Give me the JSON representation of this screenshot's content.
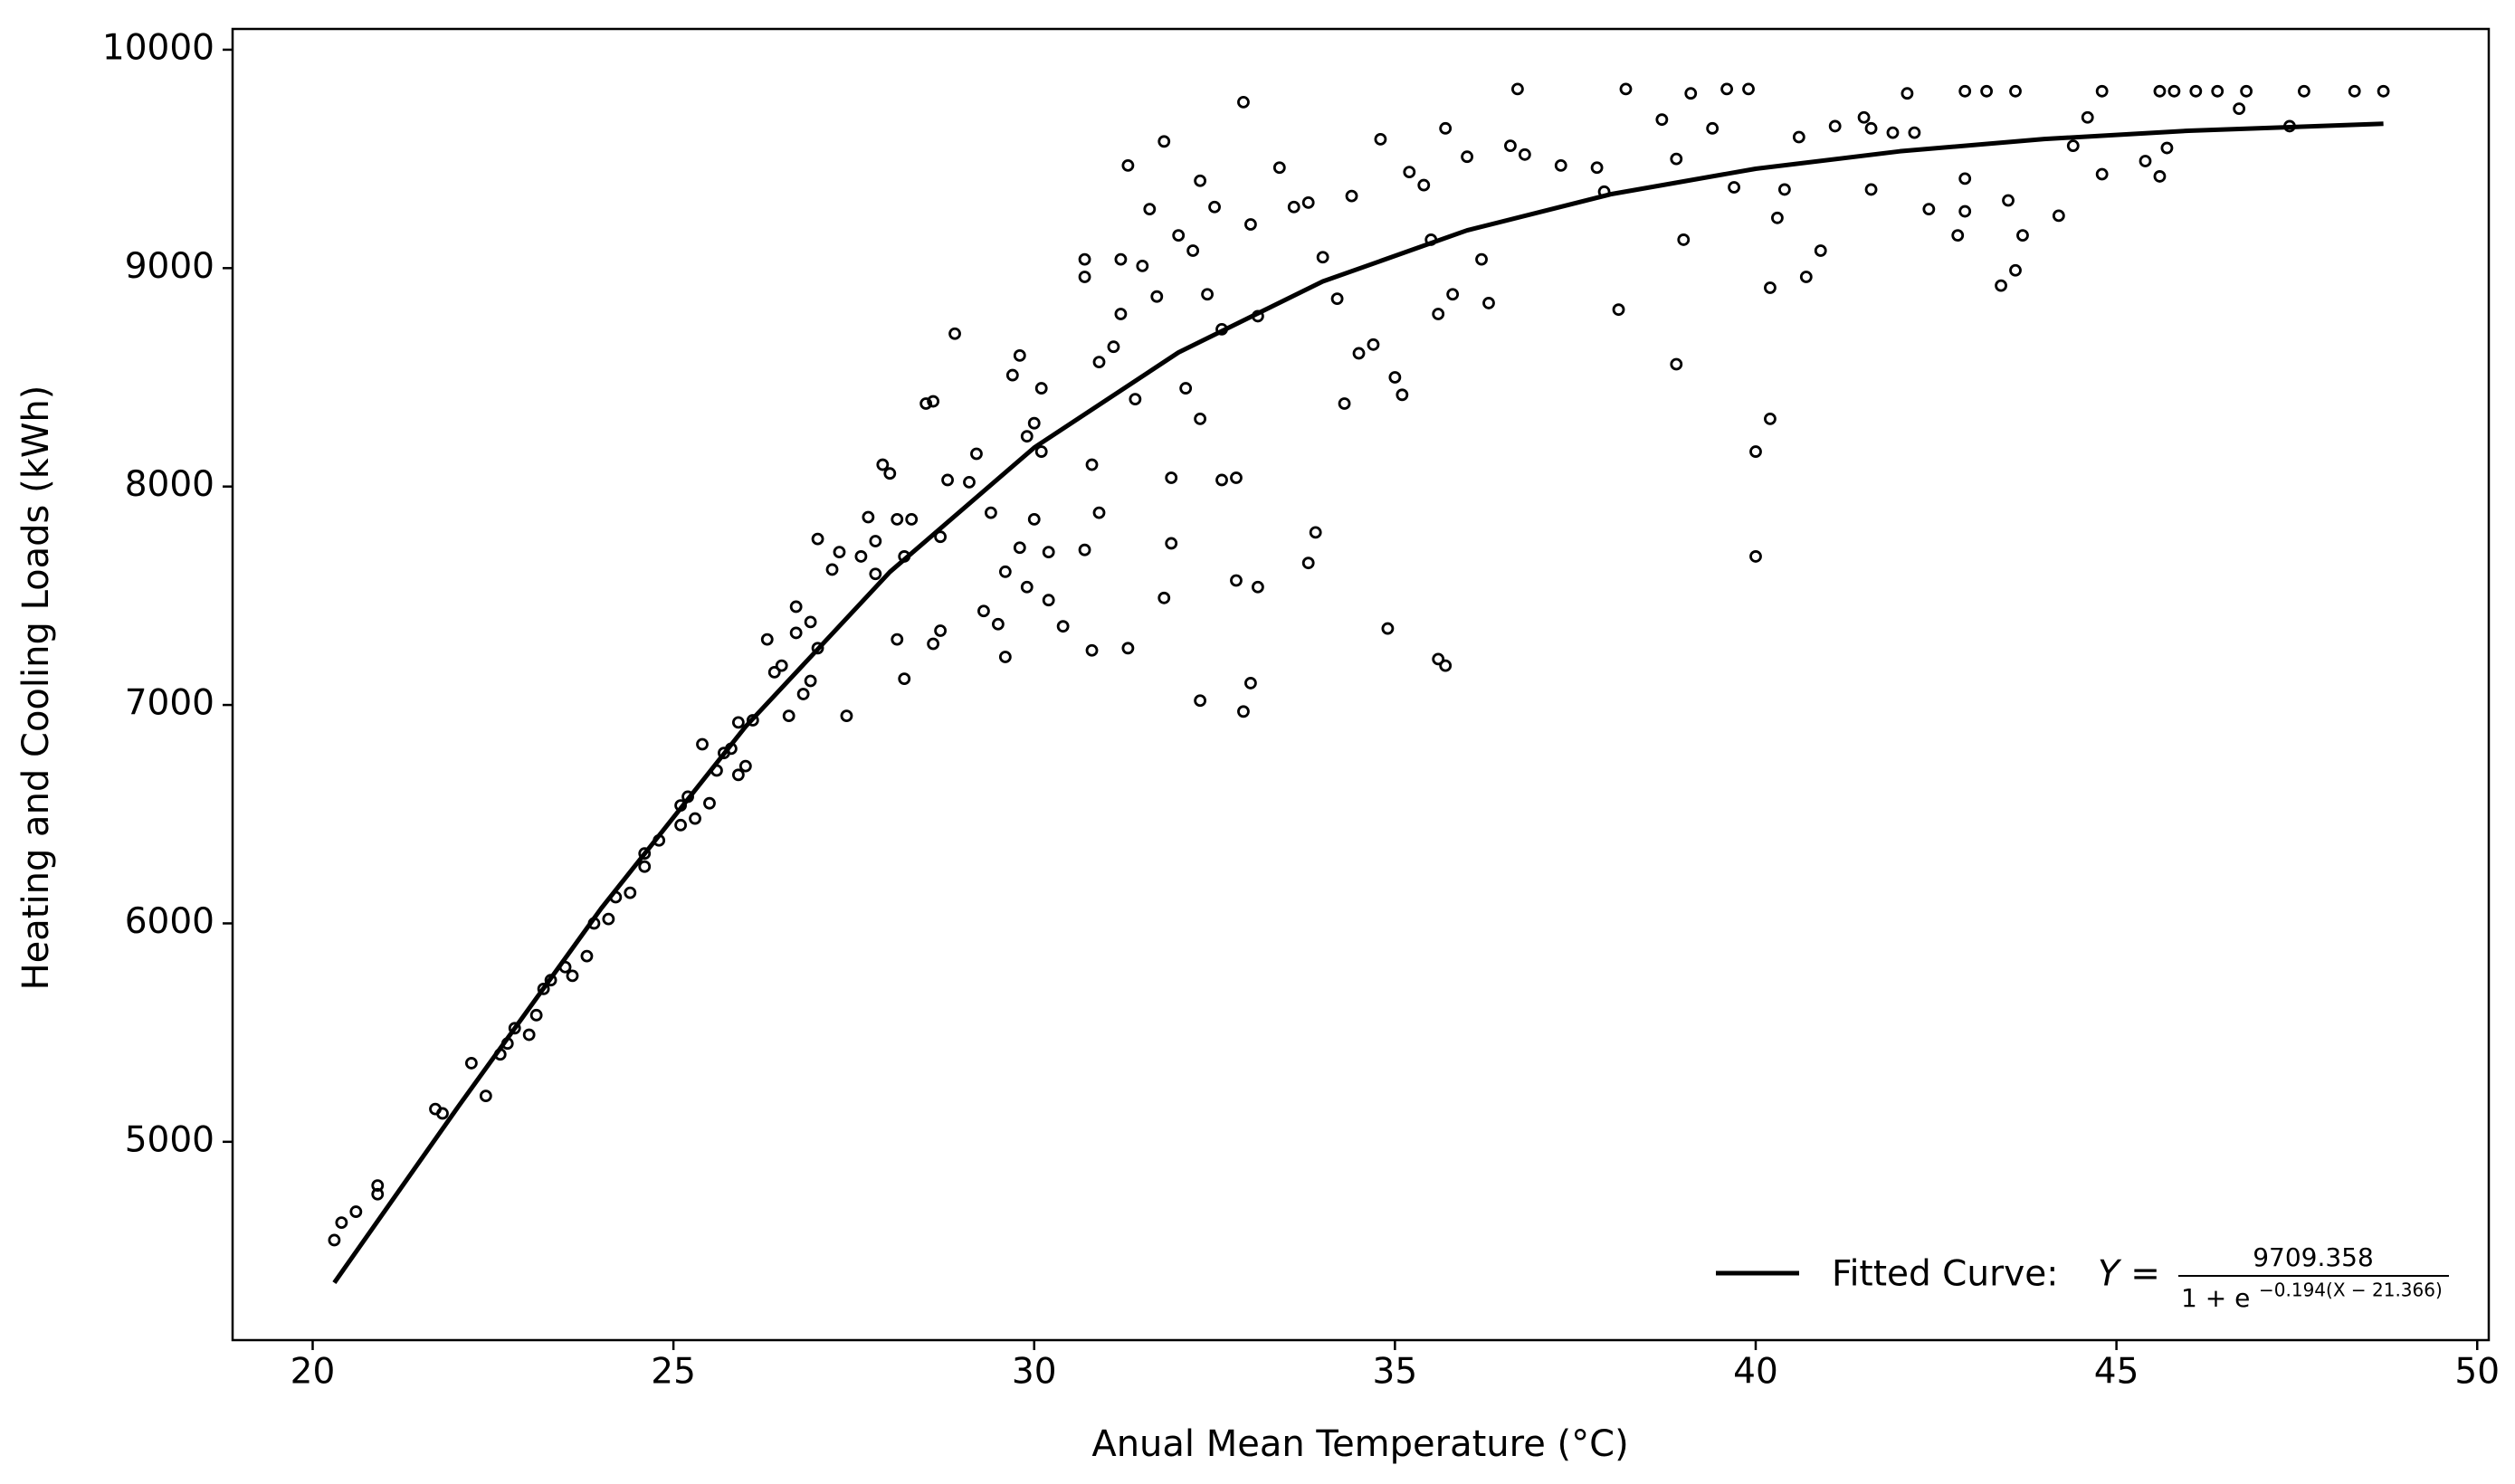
{
  "chart_data": {
    "type": "scatter",
    "xlabel": "Anual Mean Temperature (°C)",
    "ylabel": "Heating and Cooling Loads (kWh)",
    "xlim": [
      18.89,
      50.16
    ],
    "ylim": [
      4092,
      10095
    ],
    "xticks": [
      20,
      25,
      30,
      35,
      40,
      45,
      50
    ],
    "yticks": [
      5000,
      6000,
      7000,
      8000,
      9000,
      10000
    ],
    "legend_position": "lower right",
    "legend_formula": {
      "lhs": "Y =",
      "numerator": "9709.358",
      "denominator": "1 + e",
      "exponent": "−0.194(X − 21.366)"
    },
    "series": [
      {
        "type": "scatter",
        "color": "#000000",
        "marker": "open-circle",
        "x": [
          20.3,
          20.4,
          20.6,
          20.9,
          20.9,
          21.7,
          21.8,
          22.2,
          22.4,
          22.6,
          22.7,
          22.8,
          23.0,
          23.1,
          23.2,
          23.3,
          23.5,
          23.6,
          23.8,
          23.9,
          24.1,
          24.2,
          24.4,
          24.6,
          24.6,
          24.8,
          25.1,
          25.1,
          25.2,
          25.3,
          25.4,
          25.5,
          25.6,
          25.7,
          25.8,
          25.9,
          25.9,
          26.0,
          26.1,
          26.3,
          26.4,
          26.5,
          26.6,
          26.7,
          26.7,
          26.8,
          26.9,
          26.9,
          27.0,
          27.0,
          27.2,
          27.3,
          27.4,
          27.6,
          27.7,
          27.8,
          27.8,
          27.9,
          28.0,
          28.1,
          28.1,
          28.2,
          28.2,
          28.3,
          28.5,
          28.6,
          28.6,
          28.7,
          28.7,
          28.8,
          28.9,
          29.1,
          29.2,
          29.3,
          29.4,
          29.5,
          29.6,
          29.6,
          29.7,
          29.8,
          29.8,
          29.9,
          29.9,
          30.0,
          30.0,
          30.1,
          30.1,
          30.2,
          30.2,
          30.4,
          30.7,
          30.7,
          30.7,
          30.8,
          30.8,
          30.9,
          30.9,
          31.1,
          31.2,
          31.2,
          31.3,
          31.3,
          31.4,
          31.5,
          31.6,
          31.7,
          31.8,
          31.8,
          31.9,
          31.9,
          32.0,
          32.1,
          32.2,
          32.3,
          32.3,
          32.3,
          32.4,
          32.5,
          32.6,
          32.6,
          32.8,
          32.8,
          32.9,
          32.9,
          33.0,
          33.0,
          33.1,
          33.1,
          33.4,
          33.6,
          33.8,
          33.8,
          33.9,
          34.0,
          34.2,
          34.3,
          34.4,
          34.5,
          34.7,
          34.8,
          34.9,
          35.0,
          35.1,
          35.2,
          35.4,
          35.5,
          35.6,
          35.6,
          35.7,
          35.7,
          35.8,
          36.0,
          36.2,
          36.3,
          36.6,
          36.7,
          36.8,
          37.3,
          37.8,
          37.9,
          38.1,
          38.2,
          38.7,
          38.9,
          38.9,
          39.0,
          39.1,
          39.4,
          39.6,
          39.7,
          39.9,
          40.0,
          40.0,
          40.2,
          40.2,
          40.3,
          40.4,
          40.6,
          40.7,
          40.9,
          41.1,
          41.5,
          41.6,
          41.6,
          41.9,
          42.1,
          42.2,
          42.4,
          42.8,
          42.9,
          42.9,
          42.9,
          43.2,
          43.4,
          43.5,
          43.6,
          43.6,
          43.7,
          44.2,
          44.4,
          44.6,
          44.8,
          44.8,
          45.4,
          45.6,
          45.6,
          45.7,
          45.8,
          46.1,
          46.4,
          46.7,
          46.8,
          47.4,
          47.6,
          48.3,
          48.7
        ],
        "values": [
          4550,
          4630,
          4680,
          4760,
          4800,
          5150,
          5130,
          5360,
          5210,
          5400,
          5450,
          5520,
          5490,
          5580,
          5700,
          5740,
          5800,
          5760,
          5850,
          6000,
          6020,
          6120,
          6140,
          6260,
          6320,
          6380,
          6450,
          6540,
          6580,
          6480,
          6820,
          6550,
          6700,
          6780,
          6800,
          6920,
          6680,
          6720,
          6930,
          7300,
          7150,
          7180,
          6950,
          7450,
          7330,
          7050,
          7110,
          7380,
          7260,
          7760,
          7620,
          7700,
          6950,
          7680,
          7860,
          7750,
          7600,
          8100,
          8060,
          7850,
          7300,
          7120,
          7680,
          7850,
          8380,
          8390,
          7280,
          7770,
          7340,
          8030,
          8700,
          8020,
          8150,
          7430,
          7880,
          7370,
          7220,
          7610,
          8510,
          8600,
          7720,
          7540,
          8230,
          8290,
          7850,
          8450,
          8160,
          7700,
          7480,
          7360,
          9040,
          8960,
          7710,
          8100,
          7250,
          8570,
          7880,
          8640,
          8790,
          9040,
          9470,
          7260,
          8400,
          9010,
          9270,
          8870,
          9580,
          7490,
          7740,
          8040,
          9150,
          8450,
          9080,
          9400,
          7020,
          8310,
          8880,
          9280,
          8720,
          8030,
          7570,
          8040,
          9760,
          6970,
          9200,
          7100,
          8780,
          7540,
          9460,
          9280,
          9300,
          7650,
          7790,
          9050,
          8860,
          8380,
          9330,
          8610,
          8650,
          9590,
          7350,
          8500,
          8420,
          9440,
          9380,
          9130,
          8790,
          7210,
          7180,
          9640,
          8880,
          9510,
          9040,
          8840,
          9560,
          9820,
          9520,
          9470,
          9460,
          9350,
          8810,
          9820,
          9680,
          9500,
          8560,
          9130,
          9800,
          9640,
          9820,
          9370,
          9820,
          8160,
          7680,
          8310,
          8910,
          9230,
          9360,
          9600,
          8960,
          9080,
          9650,
          9690,
          9360,
          9640,
          9620,
          9800,
          9620,
          9270,
          9150,
          9810,
          9260,
          9410,
          9810,
          8920,
          9310,
          9810,
          8990,
          9150,
          9240,
          9560,
          9690,
          9810,
          9430,
          9490,
          9810,
          9420,
          9550,
          9810,
          9810,
          9810,
          9730,
          9810,
          9650,
          9810,
          9810,
          9810
        ]
      },
      {
        "type": "line",
        "name": "Fitted Curve:",
        "color": "#000000",
        "x": [
          20.3,
          22,
          24,
          26,
          28,
          30,
          32,
          34,
          36,
          38,
          40,
          42,
          44,
          46,
          48.7
        ],
        "values": [
          4355,
          5153,
          6069,
          6901,
          7609,
          8178,
          8614,
          8939,
          9173,
          9339,
          9455,
          9535,
          9591,
          9629,
          9661
        ]
      }
    ]
  }
}
